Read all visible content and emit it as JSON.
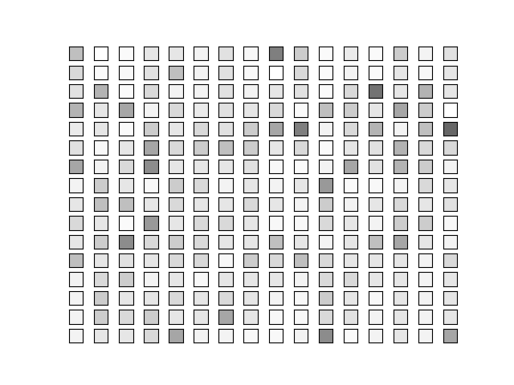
{
  "chart_data": {
    "type": "image_grid",
    "tick_labels": false,
    "value_range": [
      0,
      1
    ],
    "cells": [
      [
        0.25,
        0.0,
        0.02,
        0.1,
        0.1,
        0.05,
        0.12,
        0.03,
        0.5,
        0.2,
        0.02,
        0.08,
        0.02,
        0.2,
        0.05,
        0.12
      ],
      [
        0.15,
        0.02,
        0.03,
        0.12,
        0.25,
        0.05,
        0.12,
        0.03,
        0.0,
        0.15,
        0.02,
        0.05,
        0.02,
        0.1,
        0.03,
        0.1
      ],
      [
        0.12,
        0.3,
        0.02,
        0.15,
        0.05,
        0.05,
        0.12,
        0.05,
        0.1,
        0.12,
        0.02,
        0.15,
        0.55,
        0.1,
        0.3,
        0.1
      ],
      [
        0.3,
        0.1,
        0.35,
        0.05,
        0.15,
        0.08,
        0.12,
        0.1,
        0.15,
        0.02,
        0.25,
        0.2,
        0.1,
        0.35,
        0.2,
        0.0
      ],
      [
        0.08,
        0.1,
        0.02,
        0.2,
        0.1,
        0.15,
        0.12,
        0.2,
        0.35,
        0.5,
        0.05,
        0.15,
        0.3,
        0.05,
        0.25,
        0.6
      ],
      [
        0.12,
        0.03,
        0.1,
        0.35,
        0.15,
        0.2,
        0.25,
        0.2,
        0.1,
        0.15,
        0.02,
        0.1,
        0.12,
        0.3,
        0.15,
        0.15
      ],
      [
        0.35,
        0.05,
        0.15,
        0.45,
        0.1,
        0.1,
        0.1,
        0.12,
        0.03,
        0.02,
        0.05,
        0.35,
        0.12,
        0.3,
        0.2,
        0.05
      ],
      [
        0.05,
        0.2,
        0.1,
        0.03,
        0.2,
        0.15,
        0.05,
        0.1,
        0.05,
        0.1,
        0.4,
        0.02,
        0.03,
        0.05,
        0.15,
        0.1
      ],
      [
        0.1,
        0.25,
        0.25,
        0.1,
        0.15,
        0.1,
        0.1,
        0.15,
        0.1,
        0.05,
        0.2,
        0.05,
        0.1,
        0.15,
        0.1,
        0.12
      ],
      [
        0.15,
        0.1,
        0.02,
        0.4,
        0.1,
        0.15,
        0.15,
        0.1,
        0.03,
        0.03,
        0.15,
        0.1,
        0.05,
        0.2,
        0.2,
        0.03
      ],
      [
        0.1,
        0.2,
        0.45,
        0.15,
        0.2,
        0.15,
        0.1,
        0.1,
        0.25,
        0.1,
        0.05,
        0.1,
        0.25,
        0.35,
        0.1,
        0.05
      ],
      [
        0.25,
        0.1,
        0.12,
        0.1,
        0.15,
        0.15,
        0.03,
        0.2,
        0.15,
        0.25,
        0.15,
        0.1,
        0.1,
        0.1,
        0.05,
        0.15
      ],
      [
        0.05,
        0.15,
        0.2,
        0.05,
        0.1,
        0.03,
        0.1,
        0.1,
        0.1,
        0.05,
        0.15,
        0.15,
        0.1,
        0.1,
        0.05,
        0.1
      ],
      [
        0.05,
        0.2,
        0.1,
        0.1,
        0.15,
        0.1,
        0.15,
        0.1,
        0.05,
        0.03,
        0.2,
        0.1,
        0.03,
        0.1,
        0.05,
        0.1
      ],
      [
        0.05,
        0.2,
        0.15,
        0.2,
        0.1,
        0.1,
        0.35,
        0.1,
        0.03,
        0.03,
        0.15,
        0.12,
        0.05,
        0.1,
        0.05,
        0.1
      ],
      [
        0.05,
        0.1,
        0.1,
        0.15,
        0.35,
        0.05,
        0.05,
        0.03,
        0.03,
        0.05,
        0.45,
        0.02,
        0.05,
        0.1,
        0.05,
        0.35
      ]
    ]
  }
}
